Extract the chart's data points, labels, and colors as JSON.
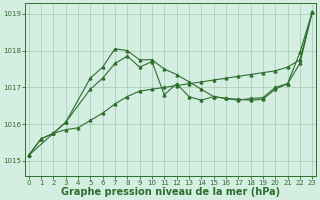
{
  "background_color": "#d4eee2",
  "grid_color": "#a8c8b4",
  "line_color": "#2d6e2d",
  "xlabel": "Graphe pression niveau de la mer (hPa)",
  "xlabel_fontsize": 7,
  "ylim": [
    1014.6,
    1019.3
  ],
  "yticks": [
    1015,
    1016,
    1017,
    1018,
    1019
  ],
  "xlim": [
    -0.3,
    23.3
  ],
  "xticks": [
    0,
    1,
    2,
    3,
    4,
    5,
    6,
    7,
    8,
    9,
    10,
    11,
    12,
    13,
    14,
    15,
    16,
    17,
    18,
    19,
    20,
    21,
    22,
    23
  ],
  "series1_x": [
    0,
    1,
    2,
    3,
    4,
    5,
    6,
    7,
    8,
    9,
    10,
    11,
    12,
    13,
    14,
    15,
    16,
    17,
    18,
    19,
    20,
    21,
    22,
    23
  ],
  "series1_y": [
    1015.15,
    1015.6,
    1015.75,
    1015.85,
    1015.9,
    1016.1,
    1016.3,
    1016.55,
    1016.75,
    1016.9,
    1016.95,
    1017.0,
    1017.05,
    1017.1,
    1017.15,
    1017.2,
    1017.25,
    1017.3,
    1017.35,
    1017.4,
    1017.45,
    1017.55,
    1017.75,
    1019.05
  ],
  "series2_x": [
    0,
    2,
    3,
    5,
    6,
    7,
    8,
    9,
    10,
    11,
    12,
    13,
    14,
    15,
    16,
    17,
    18,
    19,
    20,
    21,
    22,
    23
  ],
  "series2_y": [
    1015.15,
    1015.75,
    1016.05,
    1016.95,
    1017.25,
    1017.65,
    1017.85,
    1017.55,
    1017.7,
    1016.8,
    1017.1,
    1016.75,
    1016.65,
    1016.75,
    1016.7,
    1016.68,
    1016.65,
    1016.68,
    1016.95,
    1017.1,
    1017.95,
    1019.05
  ],
  "series3_x": [
    0,
    1,
    2,
    3,
    5,
    6,
    7,
    8,
    9,
    10,
    11,
    12,
    13,
    14,
    15,
    16,
    17,
    18,
    19,
    20,
    21,
    22,
    23
  ],
  "series3_y": [
    1015.15,
    1015.6,
    1015.75,
    1016.05,
    1017.25,
    1017.55,
    1018.05,
    1018.0,
    1017.75,
    1017.75,
    1017.5,
    1017.35,
    1017.15,
    1016.95,
    1016.75,
    1016.7,
    1016.65,
    1016.7,
    1016.72,
    1017.0,
    1017.1,
    1017.65,
    1019.05
  ]
}
